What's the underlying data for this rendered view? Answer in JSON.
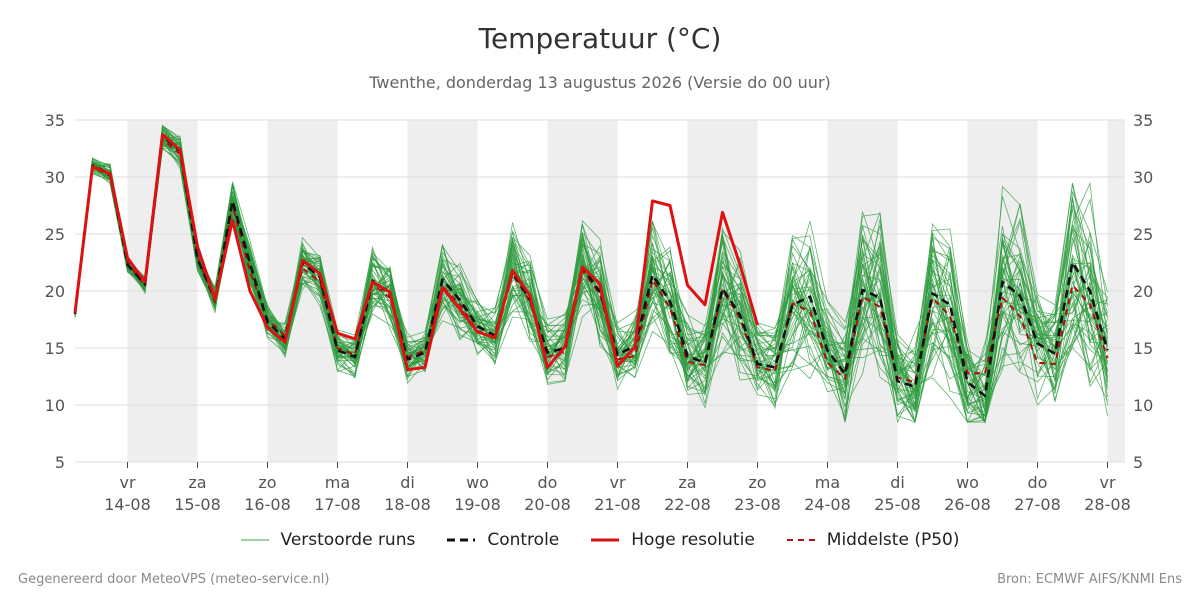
{
  "chart_data": {
    "type": "line",
    "title": "Temperatuur (°C)",
    "subtitle": "Twenthe, donderdag 13 augustus 2026 (Versie do 00 uur)",
    "ylim": [
      5,
      35
    ],
    "yticks": [
      5,
      10,
      15,
      20,
      25,
      30,
      35
    ],
    "x_steps_per_day": 4,
    "x_range_steps": [
      -3,
      57
    ],
    "day_ticks": [
      {
        "day": "vr",
        "date": "14-08"
      },
      {
        "day": "za",
        "date": "15-08"
      },
      {
        "day": "zo",
        "date": "16-08"
      },
      {
        "day": "ma",
        "date": "17-08"
      },
      {
        "day": "di",
        "date": "18-08"
      },
      {
        "day": "wo",
        "date": "19-08"
      },
      {
        "day": "do",
        "date": "20-08"
      },
      {
        "day": "vr",
        "date": "21-08"
      },
      {
        "day": "za",
        "date": "22-08"
      },
      {
        "day": "zo",
        "date": "23-08"
      },
      {
        "day": "ma",
        "date": "24-08"
      },
      {
        "day": "di",
        "date": "25-08"
      },
      {
        "day": "wo",
        "date": "26-08"
      },
      {
        "day": "do",
        "date": "27-08"
      },
      {
        "day": "vr",
        "date": "28-08"
      }
    ],
    "weekend_shading": "alternate days",
    "grid": true,
    "legend_position": "bottom",
    "series": [
      {
        "name": "Controle",
        "color": "#111111",
        "style": "dashed",
        "values": [
          18.0,
          31.0,
          30.3,
          22.3,
          20.6,
          33.6,
          32.3,
          22.8,
          19.3,
          27.9,
          22.4,
          17.3,
          15.8,
          22.5,
          21.2,
          14.8,
          14.2,
          20.9,
          19.7,
          14.0,
          14.6,
          21.0,
          19.2,
          16.9,
          16.1,
          21.7,
          19.2,
          14.6,
          15.0,
          22.1,
          19.9,
          14.4,
          15.2,
          21.4,
          19.1,
          14.3,
          13.7,
          20.2,
          17.9,
          13.6,
          13.3,
          18.8,
          19.5,
          14.8,
          12.7,
          20.1,
          19.4,
          12.1,
          11.6,
          19.8,
          18.8,
          12.0,
          10.8,
          20.8,
          19.6,
          15.4,
          14.5,
          22.5,
          20.0,
          14.8
        ]
      },
      {
        "name": "Hoge resolutie",
        "color": "#dd1111",
        "style": "solid",
        "values": [
          18.1,
          30.9,
          30.3,
          22.9,
          20.8,
          33.7,
          32.4,
          23.9,
          19.3,
          26.2,
          20.0,
          16.8,
          15.5,
          22.7,
          21.5,
          16.3,
          15.8,
          20.8,
          19.9,
          13.1,
          13.3,
          20.3,
          18.4,
          16.4,
          15.9,
          21.8,
          19.6,
          13.3,
          15.1,
          22.1,
          20.6,
          13.4,
          15.1,
          27.9,
          27.5,
          20.5,
          18.8,
          26.9,
          22.3,
          17.0
        ]
      },
      {
        "name": "Middelste (P50)",
        "color": "#aa1111",
        "style": "dashed",
        "values": [
          18.0,
          30.9,
          30.1,
          22.5,
          20.4,
          33.3,
          32.0,
          23.0,
          19.0,
          27.6,
          21.7,
          17.5,
          16.1,
          22.0,
          20.8,
          15.0,
          14.4,
          20.6,
          19.4,
          14.2,
          14.8,
          20.4,
          18.8,
          16.5,
          15.9,
          21.5,
          19.1,
          14.2,
          14.7,
          21.8,
          19.7,
          14.0,
          14.3,
          21.0,
          18.5,
          13.8,
          13.5,
          20.1,
          17.6,
          13.3,
          13.0,
          18.9,
          18.2,
          13.7,
          12.3,
          19.5,
          18.6,
          12.4,
          12.0,
          19.4,
          17.8,
          12.8,
          12.8,
          19.4,
          17.8,
          13.7,
          13.6,
          20.5,
          18.8,
          14.1
        ]
      }
    ],
    "ensemble": {
      "name": "Verstoorde runs",
      "color": "#2e9b3e",
      "members": 50
    }
  },
  "legend": [
    {
      "label": "Verstoorde runs",
      "color": "#3aa84a",
      "style": "thin"
    },
    {
      "label": "Controle",
      "color": "#111111",
      "style": "dashed"
    },
    {
      "label": "Hoge resolutie",
      "color": "#dd1111",
      "style": "solid"
    },
    {
      "label": "Middelste (P50)",
      "color": "#aa1111",
      "style": "dashed"
    }
  ],
  "footer": {
    "left": "Gegenereerd door MeteoVPS (meteo-service.nl)",
    "right": "Bron: ECMWF AIFS/KNMI Ens"
  }
}
